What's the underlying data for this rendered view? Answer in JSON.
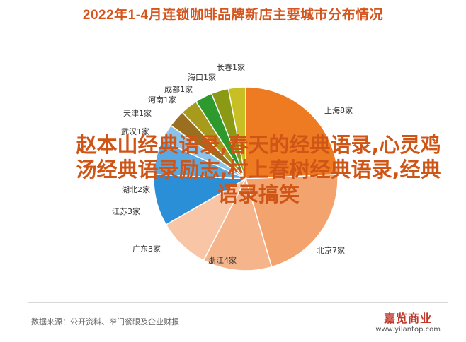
{
  "chart_data": {
    "type": "pie",
    "title": "2022年1-4月连锁咖啡品牌新店主要城市分布情况",
    "slices": [
      {
        "label": "上海8家",
        "value": 8,
        "color": "#ee7a22"
      },
      {
        "label": "北京7家",
        "value": 7,
        "color": "#f3a46e"
      },
      {
        "label": "浙江4家",
        "value": 4,
        "color": "#f6b48a"
      },
      {
        "label": "广东3家",
        "value": 3,
        "color": "#f8c6a7"
      },
      {
        "label": "江苏3家",
        "value": 3,
        "color": "#2a8fd6"
      },
      {
        "label": "湖北2家",
        "value": 2,
        "color": "#5aa8e0"
      },
      {
        "label": "武汉1家",
        "value": 1,
        "color": "#8cc3ea"
      },
      {
        "label": "天津1家",
        "value": 1,
        "color": "#9a6f1f"
      },
      {
        "label": "河南1家",
        "value": 1,
        "color": "#a89a1a"
      },
      {
        "label": "成都1家",
        "value": 1,
        "color": "#2e9a2e"
      },
      {
        "label": "海口1家",
        "value": 1,
        "color": "#8b9a14"
      },
      {
        "label": "长春1家",
        "value": 1,
        "color": "#c8bf25"
      }
    ]
  },
  "overlay_text": "赵本山经典语录,春天的经典语录,心灵鸡汤经典语录励志,村上春树经典语录,经典语录搞笑",
  "footer": {
    "source": "数据来源：公开资料、窄门餐眼及企业财报",
    "brand": "嘉览商业",
    "url": "www.yilantop.com"
  }
}
